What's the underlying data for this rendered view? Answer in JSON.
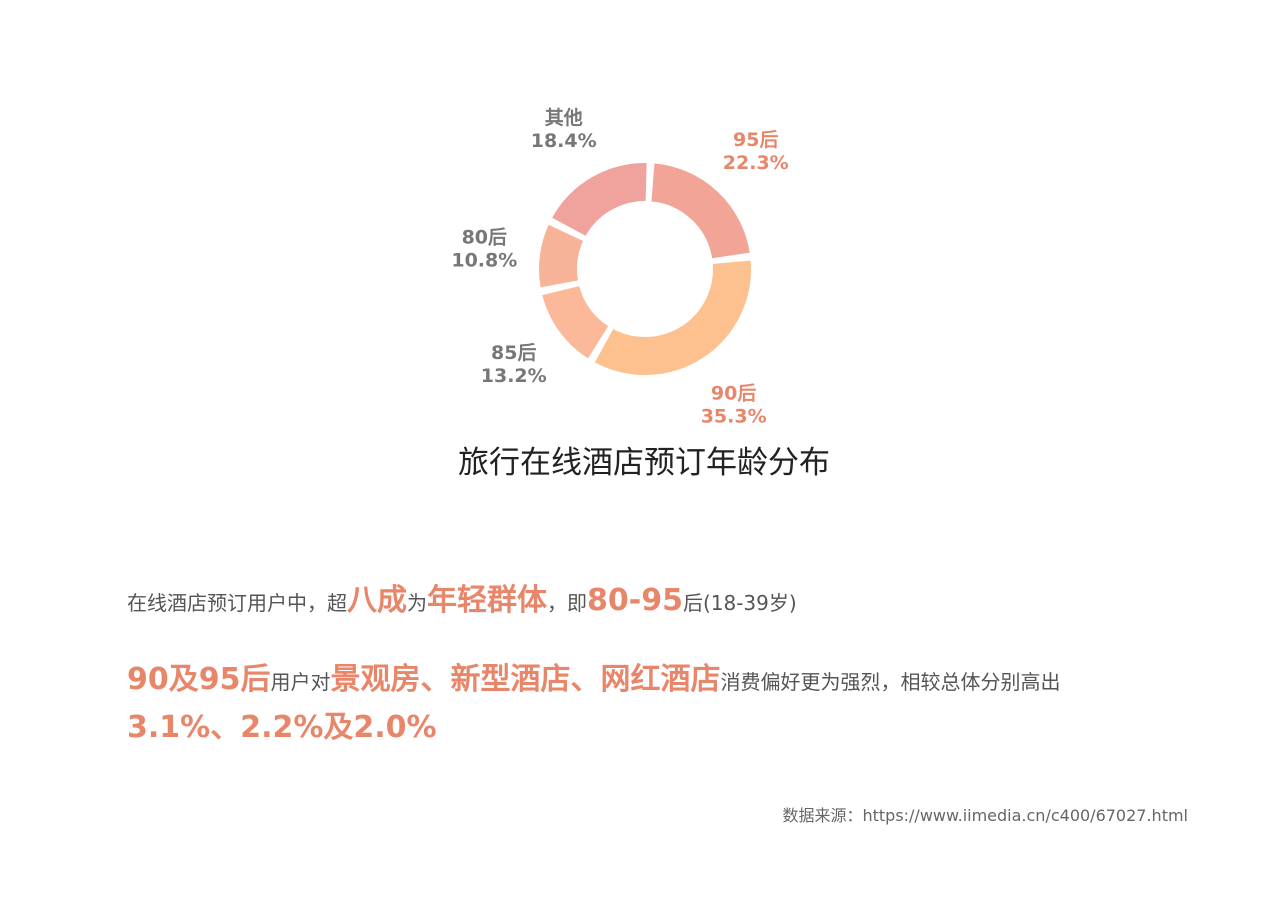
{
  "chart_data": {
    "type": "pie",
    "donut": true,
    "title": "旅行在线酒店预订年龄分布",
    "categories": [
      "95后",
      "90后",
      "85后",
      "80后",
      "其他"
    ],
    "labels": [
      "95后",
      "90后",
      "85后",
      "80后",
      "其他"
    ],
    "values": [
      22.3,
      35.3,
      13.2,
      10.8,
      18.4
    ],
    "value_labels": [
      "22.3%",
      "35.3%",
      "13.2%",
      "10.8%",
      "18.4%"
    ],
    "slice_colors": [
      "#f2a496",
      "#fcc18f",
      "#fbb99a",
      "#f7b398",
      "#f0a39c"
    ],
    "label_colors": [
      "#e8866a",
      "#e8866a",
      "#777777",
      "#777777",
      "#777777"
    ]
  },
  "text": {
    "line1": [
      {
        "t": "在线酒店预订用户中，超",
        "hl": false
      },
      {
        "t": "八成",
        "hl": true
      },
      {
        "t": "为",
        "hl": false
      },
      {
        "t": "年轻群体",
        "hl": true
      },
      {
        "t": "，即",
        "hl": false
      },
      {
        "t": "80-95",
        "hl": true
      },
      {
        "t": "后(18-39岁)",
        "hl": false
      }
    ],
    "line2": [
      {
        "t": "90及95后",
        "hl": true
      },
      {
        "t": "用户对",
        "hl": false
      },
      {
        "t": "景观房、新型酒店、网红酒店",
        "hl": true
      },
      {
        "t": "消费偏好更为强烈，相较总体分别高出",
        "hl": false
      }
    ],
    "line3": [
      {
        "t": "3.1%、2.2%及2.0%",
        "hl": true
      }
    ]
  },
  "source": "数据来源：https://www.iimedia.cn/c400/67027.html"
}
